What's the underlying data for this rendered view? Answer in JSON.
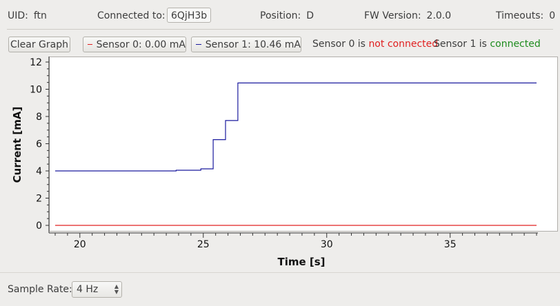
{
  "info": {
    "uid_label": "UID:",
    "uid_value": "ftn",
    "connected_label": "Connected to:",
    "connected_value": "6QjH3b",
    "position_label": "Position:",
    "position_value": "D",
    "fw_label": "FW Version:",
    "fw_value": "2.0.0",
    "timeouts_label": "Timeouts:",
    "timeouts_value": "0"
  },
  "toolbar": {
    "clear_label": "Clear Graph",
    "sensor0_label": "Sensor 0: 0.00 mA",
    "sensor1_label": "Sensor 1: 10.46 mA",
    "sensor0_status_prefix": "Sensor 0 is",
    "sensor0_status_value": "not connected",
    "sensor1_status_prefix": "Sensor 1 is",
    "sensor1_status_value": "connected"
  },
  "colors": {
    "sensor0": "#e02020",
    "sensor1": "#1a1a9e",
    "disconnected": "#e02020",
    "connected": "#1e8c1e"
  },
  "sample_rate": {
    "label": "Sample Rate:",
    "value": "4 Hz"
  },
  "chart_data": {
    "type": "line",
    "xlabel": "Time [s]",
    "ylabel": "Current [mA]",
    "xlim": [
      19,
      38.5
    ],
    "ylim": [
      -0.5,
      12
    ],
    "xticks": [
      20,
      25,
      30,
      35
    ],
    "yticks": [
      0,
      2,
      4,
      6,
      8,
      10,
      12
    ],
    "series": [
      {
        "name": "Sensor 0",
        "color": "#e02020",
        "x": [
          19,
          38.5
        ],
        "y": [
          0,
          0
        ]
      },
      {
        "name": "Sensor 1",
        "color": "#1a1a9e",
        "x": [
          19,
          23.9,
          23.9,
          24.9,
          24.9,
          25.4,
          25.4,
          25.9,
          25.9,
          26.4,
          26.4,
          38.5
        ],
        "y": [
          4.0,
          4.0,
          4.05,
          4.05,
          4.15,
          4.15,
          6.3,
          6.3,
          7.7,
          7.7,
          10.46,
          10.46
        ]
      }
    ]
  }
}
